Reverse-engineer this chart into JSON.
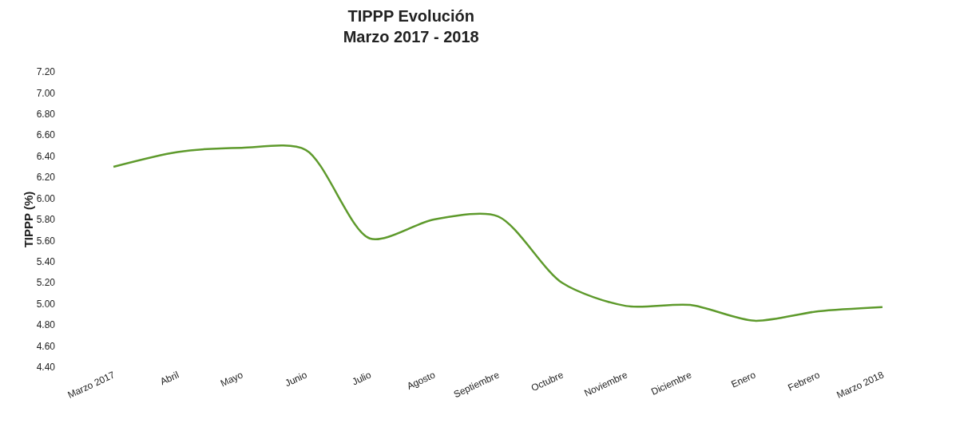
{
  "chart_data": {
    "type": "line",
    "title": "TIPPP Evolución\nMarzo 2017 - 2018",
    "ylabel": "TIPPP (%)",
    "categories": [
      "Marzo 2017",
      "Abril",
      "Mayo",
      "Junio",
      "Julio",
      "Agosto",
      "Septiembre",
      "Octubre",
      "Noviembre",
      "Diciembre",
      "Enero",
      "Febrero",
      "Marzo 2018"
    ],
    "series": [
      {
        "color": "#5e9a2c",
        "values": [
          6.3,
          6.44,
          6.48,
          6.46,
          5.62,
          5.8,
          5.83,
          5.2,
          4.98,
          4.99,
          4.84,
          4.93,
          4.97
        ]
      }
    ],
    "ylim": [
      4.4,
      7.2
    ],
    "yticks": [
      {
        "value": 4.4,
        "label": "4.40"
      },
      {
        "value": 4.6,
        "label": "4.60"
      },
      {
        "value": 4.8,
        "label": "4.80"
      },
      {
        "value": 5.0,
        "label": "5.00"
      },
      {
        "value": 5.2,
        "label": "5.20"
      },
      {
        "value": 5.4,
        "label": "5.40"
      },
      {
        "value": 5.6,
        "label": "5.60"
      },
      {
        "value": 5.8,
        "label": "5.80"
      },
      {
        "value": 6.0,
        "label": "6.00"
      },
      {
        "value": 6.2,
        "label": "6.20"
      },
      {
        "value": 6.4,
        "label": "6.40"
      },
      {
        "value": 6.6,
        "label": "6.60"
      },
      {
        "value": 6.8,
        "label": "6.80"
      },
      {
        "value": 7.0,
        "label": "7.00"
      },
      {
        "value": 7.2,
        "label": "7.20"
      }
    ],
    "grid": false,
    "marker": "none",
    "line_style": "solid"
  }
}
